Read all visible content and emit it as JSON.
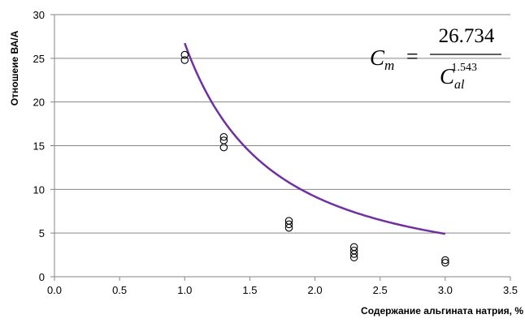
{
  "chart_data": {
    "type": "scatter",
    "xlabel": "Содержание альгината натрия, %",
    "ylabel": "Отношеие  ВА/А",
    "xlim": [
      0,
      3.5
    ],
    "ylim": [
      0,
      30
    ],
    "x_ticks": [
      "0.0",
      "0.5",
      "1.0",
      "1.5",
      "2.0",
      "2.5",
      "3.0",
      "3.5"
    ],
    "y_ticks": [
      "0",
      "5",
      "10",
      "15",
      "20",
      "25",
      "30"
    ],
    "grid": "horizontal",
    "colors": {
      "trend": "#7030a0",
      "marker": "#000000",
      "grid": "#868686"
    },
    "series": [
      {
        "marker": "open-circle",
        "points": [
          {
            "x": 1.0,
            "y": 25.4
          },
          {
            "x": 1.0,
            "y": 24.8
          },
          {
            "x": 1.3,
            "y": 16.0
          },
          {
            "x": 1.3,
            "y": 15.6
          },
          {
            "x": 1.3,
            "y": 14.8
          },
          {
            "x": 1.8,
            "y": 6.4
          },
          {
            "x": 1.8,
            "y": 6.0
          },
          {
            "x": 1.8,
            "y": 5.6
          },
          {
            "x": 2.3,
            "y": 3.4
          },
          {
            "x": 2.3,
            "y": 3.0
          },
          {
            "x": 2.3,
            "y": 2.6
          },
          {
            "x": 2.3,
            "y": 2.2
          },
          {
            "x": 3.0,
            "y": 1.9
          },
          {
            "x": 3.0,
            "y": 1.6
          }
        ]
      }
    ],
    "trendline": {
      "type": "power",
      "coefficient": 26.734,
      "exponent": -1.543,
      "x_range": [
        1.0,
        3.0
      ]
    },
    "annotation": {
      "lhs": "C",
      "lhs_sub": "m",
      "equals": "=",
      "numerator": "26.734",
      "denominator": "C",
      "denominator_sub": "al",
      "denominator_sup": "1.543"
    }
  }
}
